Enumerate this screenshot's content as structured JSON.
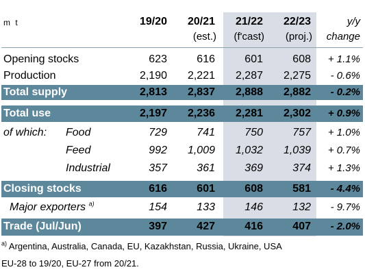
{
  "unit": "m t",
  "columns": [
    {
      "line1": "19/20",
      "line2": ""
    },
    {
      "line1": "20/21",
      "line2": "(est.)"
    },
    {
      "line1": "21/22",
      "line2": "(f'cast)"
    },
    {
      "line1": "22/23",
      "line2": "(proj.)"
    }
  ],
  "change_header": {
    "line1": "y/y",
    "line2": "change"
  },
  "rows": [
    {
      "label": "Opening stocks",
      "values": [
        "623",
        "616",
        "601",
        "608"
      ],
      "change": "+ 1.1%"
    },
    {
      "label": "Production",
      "values": [
        "2,190",
        "2,221",
        "2,287",
        "2,275"
      ],
      "change": "- 0.6%"
    },
    {
      "label": "Total supply",
      "values": [
        "2,813",
        "2,837",
        "2,888",
        "2,882"
      ],
      "change": "- 0.2%"
    },
    {
      "label": "Total use",
      "values": [
        "2,197",
        "2,236",
        "2,281",
        "2,302"
      ],
      "change": "+ 0.9%"
    },
    {
      "label": "Food",
      "prefix": "of which:",
      "values": [
        "729",
        "741",
        "750",
        "757"
      ],
      "change": "+ 1.0%"
    },
    {
      "label": "Feed",
      "values": [
        "992",
        "1,009",
        "1,032",
        "1,039"
      ],
      "change": "+ 0.7%"
    },
    {
      "label": "Industrial",
      "values": [
        "357",
        "361",
        "369",
        "374"
      ],
      "change": "+ 1.3%"
    },
    {
      "label": "Closing stocks",
      "values": [
        "616",
        "601",
        "608",
        "581"
      ],
      "change": "- 4.4%"
    },
    {
      "label": "Major exporters",
      "footnote_mark": "a)",
      "values": [
        "154",
        "133",
        "146",
        "132"
      ],
      "change": "- 9.7%"
    },
    {
      "label": "Trade (Jul/Jun)",
      "values": [
        "397",
        "427",
        "416",
        "407"
      ],
      "change": "- 2.0%"
    }
  ],
  "footnotes": {
    "a_mark": "a)",
    "a_text": "Argentina, Australia, Canada, EU, Kazakhstan, Russia, Ukraine, USA",
    "eu_note": "EU-28 to 19/20, EU-27 from 20/21."
  },
  "colors": {
    "bar": "#5d879b",
    "shade": "#d9dde6"
  }
}
